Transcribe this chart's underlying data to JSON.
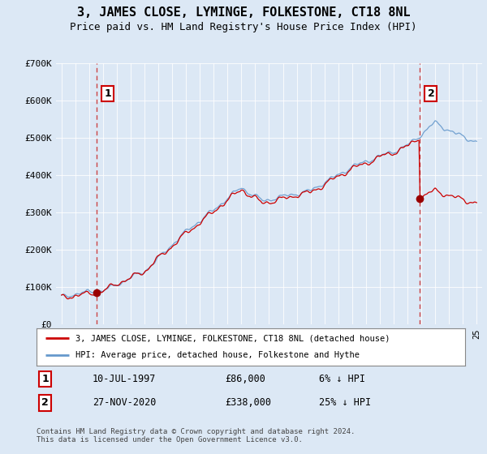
{
  "title": "3, JAMES CLOSE, LYMINGE, FOLKESTONE, CT18 8NL",
  "subtitle": "Price paid vs. HM Land Registry's House Price Index (HPI)",
  "title_fontsize": 11,
  "subtitle_fontsize": 9,
  "background_color": "#dce8f5",
  "plot_bg_color": "#dce8f5",
  "ylim": [
    0,
    700000
  ],
  "yticks": [
    0,
    100000,
    200000,
    300000,
    400000,
    500000,
    600000,
    700000
  ],
  "ytick_labels": [
    "£0",
    "£100K",
    "£200K",
    "£300K",
    "£400K",
    "£500K",
    "£600K",
    "£700K"
  ],
  "purchase1_date": 1997.53,
  "purchase1_price": 86000,
  "purchase2_date": 2020.9,
  "purchase2_price": 338000,
  "marker_color": "#990000",
  "line1_color": "#cc0000",
  "line2_color": "#6699cc",
  "dashed_line_color": "#cc4444",
  "legend_label1": "3, JAMES CLOSE, LYMINGE, FOLKESTONE, CT18 8NL (detached house)",
  "legend_label2": "HPI: Average price, detached house, Folkestone and Hythe",
  "annotation1": "1",
  "annotation2": "2",
  "table_row1": [
    "1",
    "10-JUL-1997",
    "£86,000",
    "6% ↓ HPI"
  ],
  "table_row2": [
    "2",
    "27-NOV-2020",
    "£338,000",
    "25% ↓ HPI"
  ],
  "footer": "Contains HM Land Registry data © Crown copyright and database right 2024.\nThis data is licensed under the Open Government Licence v3.0."
}
